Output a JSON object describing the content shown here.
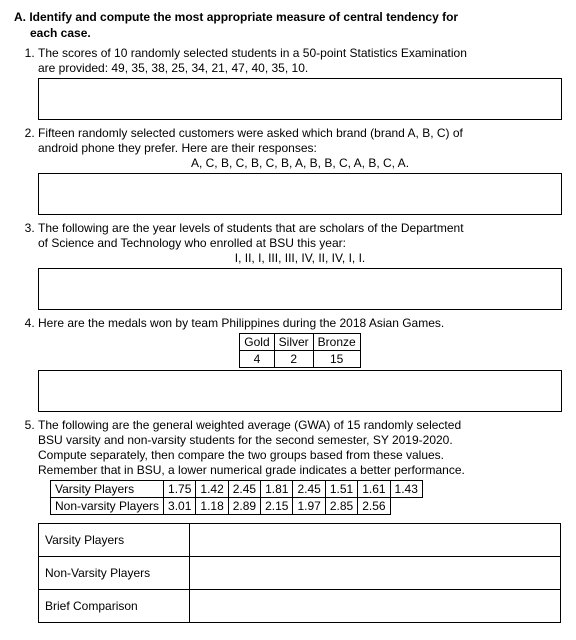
{
  "section": {
    "letter": "A.",
    "title": "Identify and compute the most appropriate measure of central tendency for",
    "title_line2": "each case."
  },
  "q1": {
    "text1": "The scores of 10 randomly selected students in a 50-point Statistics Examination",
    "text2": "are provided: 49, 35, 38, 25, 34, 21, 47, 40, 35, 10."
  },
  "q2": {
    "text1": "Fifteen randomly selected customers were asked which brand (brand A, B, C) of",
    "text2": "android phone they prefer. Here are their responses:",
    "data": "A, C, B, C, B, C, B, A, B, B, C, A, B, C, A."
  },
  "q3": {
    "text1": "The following are the year levels of students that are scholars of the Department",
    "text2": "of Science and Technology who enrolled at BSU this year:",
    "data": "I, II, I, III, III, IV, II, IV, I, I."
  },
  "q4": {
    "text1": "Here are the medals won by team Philippines during the 2018 Asian Games.",
    "table": {
      "h1": "Gold",
      "h2": "Silver",
      "h3": "Bronze",
      "v1": "4",
      "v2": "2",
      "v3": "15"
    }
  },
  "q5": {
    "text1": "The following are the general weighted average (GWA) of 15 randomly selected",
    "text2": "BSU varsity and non-varsity students for the second semester, SY 2019-2020.",
    "text3": "Compute separately, then compare the two groups based from these values.",
    "text4": "Remember that in BSU, a lower numerical grade indicates a better performance.",
    "row1_label": "Varsity Players",
    "row1": [
      "1.75",
      "1.42",
      "2.45",
      "1.81",
      "2.45",
      "1.51",
      "1.61",
      "1.43"
    ],
    "row2_label": "Non-varsity Players",
    "row2": [
      "3.01",
      "1.18",
      "2.89",
      "2.15",
      "1.97",
      "2.85",
      "2.56"
    ],
    "cmp1": "Varsity Players",
    "cmp2": "Non-Varsity Players",
    "cmp3": "Brief Comparison"
  }
}
